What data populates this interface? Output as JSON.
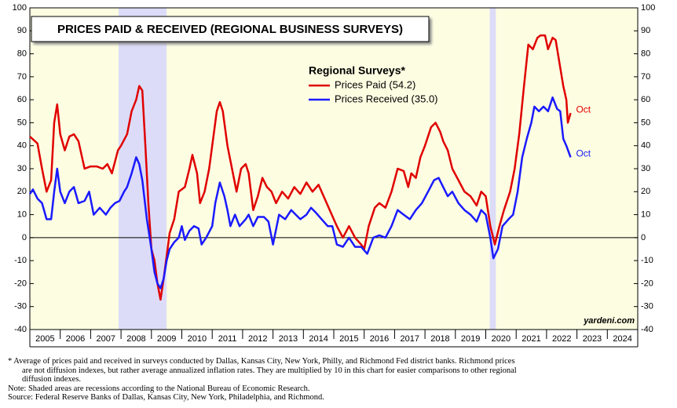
{
  "chart_data": {
    "type": "line",
    "title": "PRICES PAID & RECEIVED (REGIONAL BUSINESS SURVEYS)",
    "legend_title": "Regional Surveys*",
    "legend": "top-center",
    "xlim": [
      2005,
      2025
    ],
    "xticks": [
      2005,
      2006,
      2007,
      2008,
      2009,
      2010,
      2011,
      2012,
      2013,
      2014,
      2015,
      2016,
      2017,
      2018,
      2019,
      2020,
      2021,
      2022,
      2023,
      2024
    ],
    "ylim": [
      -40,
      100
    ],
    "yticks": [
      -40,
      -30,
      -20,
      -10,
      0,
      10,
      20,
      30,
      40,
      50,
      60,
      70,
      80,
      90,
      100
    ],
    "recessions": [
      [
        2007.92,
        2009.5
      ],
      [
        2020.13,
        2020.33
      ]
    ],
    "recession_color": "#dcdcf8",
    "background": "#fdfde2",
    "series": [
      {
        "name": "Prices Paid (54.2)",
        "color": "#e00000",
        "end_label": "Oct",
        "x": [
          2005.0,
          2005.25,
          2005.4,
          2005.55,
          2005.7,
          2005.8,
          2005.9,
          2006.0,
          2006.15,
          2006.3,
          2006.45,
          2006.6,
          2006.8,
          2007.0,
          2007.2,
          2007.4,
          2007.55,
          2007.7,
          2007.9,
          2008.0,
          2008.2,
          2008.35,
          2008.5,
          2008.6,
          2008.7,
          2008.8,
          2008.9,
          2009.0,
          2009.1,
          2009.2,
          2009.3,
          2009.4,
          2009.5,
          2009.6,
          2009.75,
          2009.9,
          2010.1,
          2010.25,
          2010.35,
          2010.5,
          2010.6,
          2010.75,
          2010.9,
          2011.0,
          2011.15,
          2011.25,
          2011.35,
          2011.5,
          2011.65,
          2011.8,
          2011.95,
          2012.1,
          2012.2,
          2012.35,
          2012.5,
          2012.65,
          2012.8,
          2012.95,
          2013.1,
          2013.3,
          2013.5,
          2013.7,
          2013.9,
          2014.1,
          2014.3,
          2014.5,
          2014.7,
          2014.9,
          2015.1,
          2015.3,
          2015.5,
          2015.7,
          2015.9,
          2016.0,
          2016.15,
          2016.35,
          2016.5,
          2016.7,
          2016.9,
          2017.1,
          2017.3,
          2017.45,
          2017.55,
          2017.7,
          2017.85,
          2018.0,
          2018.2,
          2018.35,
          2018.5,
          2018.6,
          2018.75,
          2018.9,
          2019.1,
          2019.3,
          2019.5,
          2019.7,
          2019.85,
          2020.0,
          2020.15,
          2020.3,
          2020.45,
          2020.6,
          2020.8,
          2020.95,
          2021.1,
          2021.25,
          2021.4,
          2021.55,
          2021.7,
          2021.8,
          2021.95,
          2022.05,
          2022.2,
          2022.3,
          2022.4,
          2022.55,
          2022.65,
          2022.7,
          2022.79
        ],
        "values": [
          44,
          41,
          30,
          20,
          25,
          50,
          58,
          45,
          38,
          44,
          45,
          42,
          30,
          31,
          31,
          30,
          32,
          28,
          38,
          40,
          45,
          55,
          60,
          66,
          64,
          40,
          15,
          -5,
          -10,
          -20,
          -27,
          -18,
          -8,
          2,
          8,
          20,
          22,
          30,
          36,
          28,
          15,
          20,
          30,
          40,
          55,
          59,
          55,
          40,
          30,
          20,
          30,
          32,
          28,
          12,
          18,
          26,
          22,
          20,
          15,
          20,
          17,
          22,
          19,
          24,
          20,
          23,
          17,
          11,
          5,
          0,
          5,
          0,
          -3,
          -5,
          5,
          13,
          15,
          13,
          20,
          30,
          29,
          22,
          28,
          26,
          35,
          40,
          48,
          50,
          46,
          42,
          38,
          30,
          25,
          20,
          18,
          14,
          20,
          18,
          5,
          -3,
          5,
          12,
          20,
          30,
          45,
          65,
          84,
          82,
          87,
          88,
          88,
          82,
          87,
          86,
          78,
          66,
          60,
          50,
          54.2
        ]
      },
      {
        "name": "Prices Received (35.0)",
        "color": "#1a1aff",
        "end_label": "Oct",
        "x": [
          2005.0,
          2005.1,
          2005.25,
          2005.4,
          2005.55,
          2005.7,
          2005.8,
          2005.9,
          2006.0,
          2006.15,
          2006.3,
          2006.45,
          2006.6,
          2006.8,
          2006.95,
          2007.1,
          2007.3,
          2007.5,
          2007.65,
          2007.8,
          2007.95,
          2008.1,
          2008.2,
          2008.35,
          2008.5,
          2008.6,
          2008.7,
          2008.85,
          2009.0,
          2009.1,
          2009.2,
          2009.3,
          2009.4,
          2009.5,
          2009.6,
          2009.75,
          2009.9,
          2010.0,
          2010.1,
          2010.25,
          2010.4,
          2010.55,
          2010.65,
          2010.8,
          2011.0,
          2011.1,
          2011.25,
          2011.4,
          2011.5,
          2011.6,
          2011.75,
          2011.9,
          2012.1,
          2012.2,
          2012.35,
          2012.5,
          2012.7,
          2012.85,
          2013.0,
          2013.2,
          2013.4,
          2013.6,
          2013.75,
          2013.9,
          2014.1,
          2014.25,
          2014.4,
          2014.6,
          2014.8,
          2014.95,
          2015.1,
          2015.3,
          2015.5,
          2015.7,
          2015.9,
          2016.1,
          2016.3,
          2016.5,
          2016.7,
          2016.9,
          2017.1,
          2017.3,
          2017.5,
          2017.7,
          2017.9,
          2018.1,
          2018.3,
          2018.45,
          2018.6,
          2018.75,
          2018.9,
          2019.1,
          2019.3,
          2019.5,
          2019.7,
          2019.85,
          2020.0,
          2020.15,
          2020.25,
          2020.4,
          2020.55,
          2020.75,
          2020.9,
          2021.05,
          2021.2,
          2021.35,
          2021.5,
          2021.6,
          2021.75,
          2021.9,
          2022.05,
          2022.2,
          2022.35,
          2022.45,
          2022.55,
          2022.65,
          2022.79
        ],
        "values": [
          19,
          21,
          17,
          15,
          8,
          8,
          20,
          30,
          20,
          15,
          20,
          22,
          15,
          16,
          20,
          10,
          13,
          10,
          13,
          15,
          16,
          20,
          22,
          28,
          35,
          32,
          25,
          8,
          -5,
          -15,
          -20,
          -22,
          -18,
          -10,
          -5,
          -2,
          0,
          5,
          -1,
          3,
          5,
          4,
          -3,
          0,
          5,
          15,
          24,
          18,
          12,
          5,
          10,
          5,
          8,
          10,
          5,
          9,
          9,
          7,
          -3,
          10,
          8,
          12,
          10,
          8,
          10,
          13,
          11,
          8,
          5,
          5,
          -3,
          -4,
          0,
          -4,
          -4,
          -7,
          0,
          1,
          0,
          5,
          12,
          10,
          8,
          12,
          15,
          20,
          25,
          26,
          22,
          18,
          20,
          15,
          12,
          10,
          7,
          12,
          10,
          0,
          -9,
          -5,
          5,
          8,
          10,
          20,
          35,
          43,
          50,
          57,
          55,
          57,
          55,
          61,
          56,
          55,
          43,
          40,
          35.0
        ]
      }
    ],
    "source_label": "yardeni.com",
    "notes": [
      "*  Average of prices paid and received in surveys conducted by Dallas, Kansas City, New York, Philly, and Richmond Fed district banks. Richmond prices",
      "are not diffusion indexes, but rather average annualized inflation rates. They are multiplied by 10 in this chart for easier comparisons to other regional",
      "diffusion indexes.",
      "Note: Shaded areas are recessions according to the National Bureau of Economic Research.",
      "Source: Federal Reserve Banks of Dallas, Kansas City, New York, Philadelphia, and Richmond."
    ]
  }
}
